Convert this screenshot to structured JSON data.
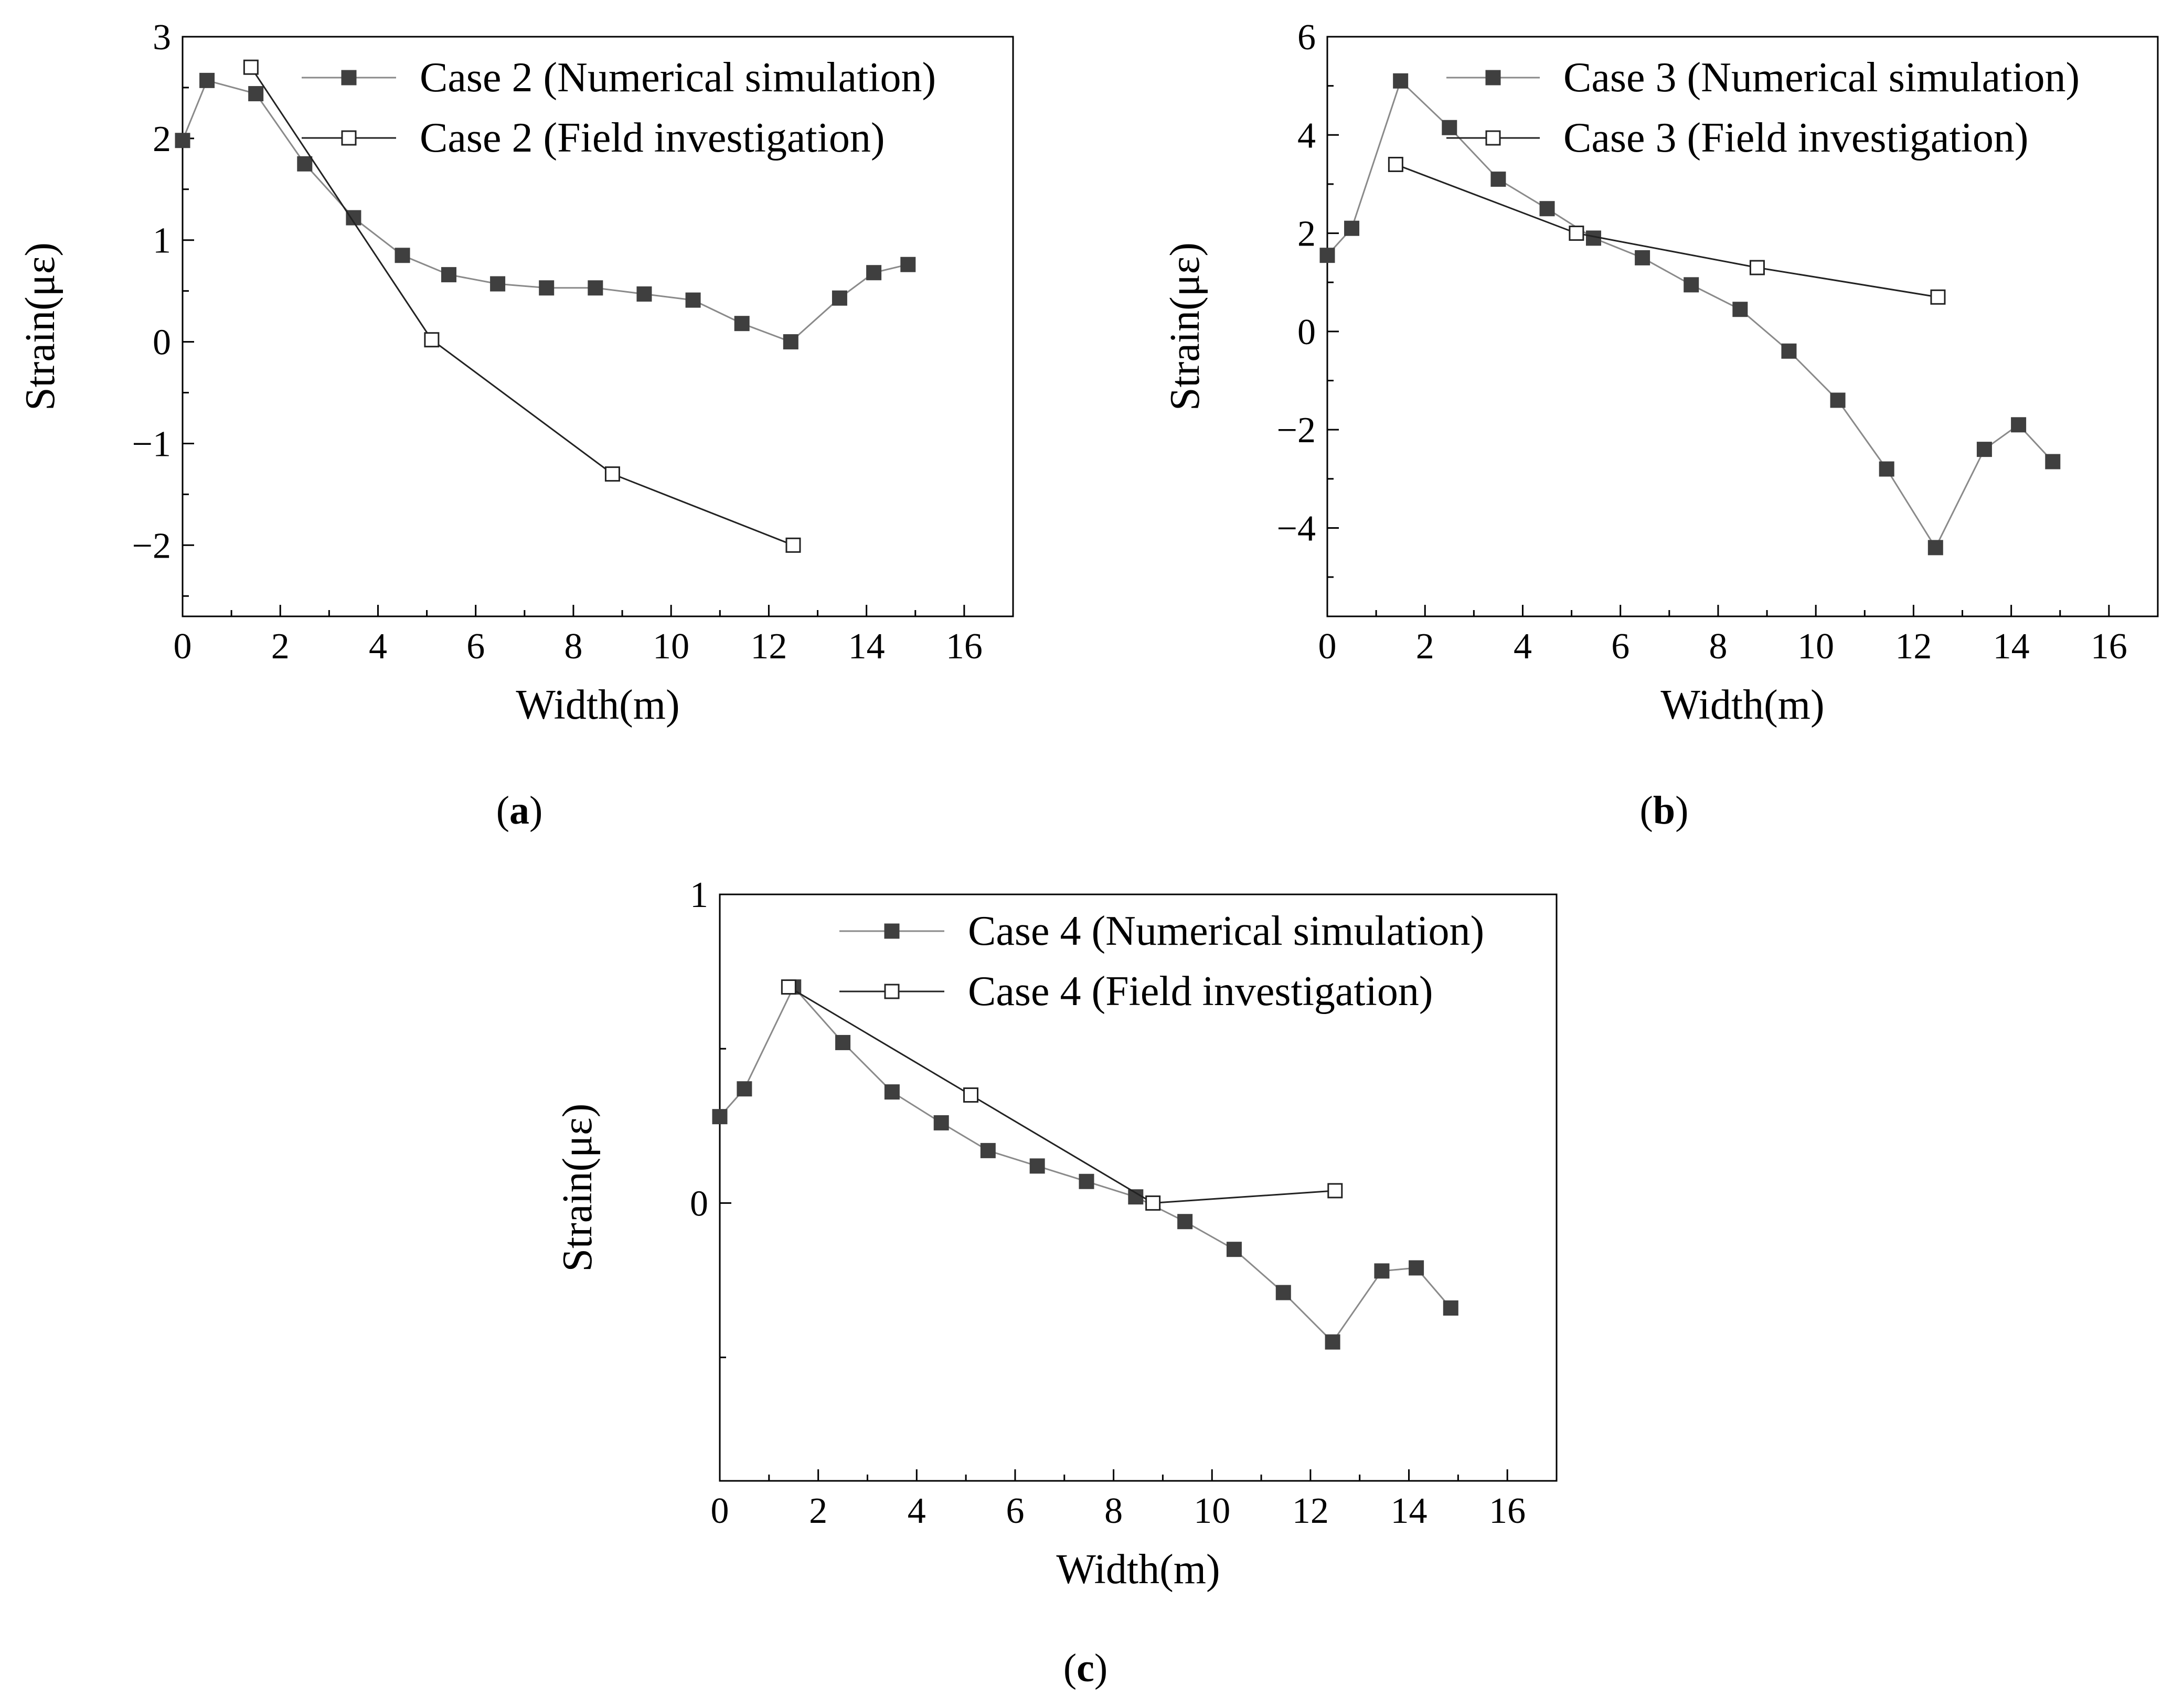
{
  "chart_data": [
    {
      "type": "line",
      "panel": "a",
      "caption_letter": "a",
      "xlabel": "Width(m)",
      "ylabel": "Strain(με)",
      "xlim": [
        0,
        17
      ],
      "ylim": [
        -2.7,
        3
      ],
      "xticks": [
        0,
        2,
        4,
        6,
        8,
        10,
        12,
        14,
        16
      ],
      "yticks": [
        -2,
        -1,
        0,
        1,
        2,
        3
      ],
      "legend_position": "top-right",
      "series": [
        {
          "name": "Case 2 (Numerical simulation)",
          "marker": "filled-square",
          "x": [
            0,
            0.5,
            1.5,
            2.5,
            3.5,
            4.5,
            5.45,
            6.45,
            7.45,
            8.45,
            9.45,
            10.45,
            11.45,
            12.45,
            13.45,
            14.15,
            14.85
          ],
          "y": [
            1.98,
            2.57,
            2.44,
            1.75,
            1.22,
            0.85,
            0.66,
            0.57,
            0.53,
            0.53,
            0.47,
            0.41,
            0.18,
            0.0,
            0.43,
            0.68,
            0.76
          ]
        },
        {
          "name": "Case 2 (Field investigation)",
          "marker": "open-square",
          "x": [
            1.4,
            5.1,
            8.8,
            12.5
          ],
          "y": [
            2.7,
            0.02,
            -1.3,
            -2.0
          ]
        }
      ]
    },
    {
      "type": "line",
      "panel": "b",
      "caption_letter": "b",
      "xlabel": "Width(m)",
      "ylabel": "Strain(με)",
      "xlim": [
        0,
        17
      ],
      "ylim": [
        -5.8,
        6
      ],
      "xticks": [
        0,
        2,
        4,
        6,
        8,
        10,
        12,
        14,
        16
      ],
      "yticks": [
        -4,
        -2,
        0,
        2,
        4,
        6
      ],
      "legend_position": "top-right",
      "series": [
        {
          "name": "Case 3 (Numerical simulation)",
          "marker": "filled-square",
          "x": [
            0,
            0.5,
            1.5,
            2.5,
            3.5,
            4.5,
            5.45,
            6.45,
            7.45,
            8.45,
            9.45,
            10.45,
            11.45,
            12.45,
            13.45,
            14.15,
            14.85
          ],
          "y": [
            1.55,
            2.1,
            5.1,
            4.15,
            3.1,
            2.5,
            1.9,
            1.5,
            0.95,
            0.45,
            -0.4,
            -1.4,
            -2.8,
            -4.4,
            -2.4,
            -1.9,
            -2.65
          ]
        },
        {
          "name": "Case 3 (Field investigation)",
          "marker": "open-square",
          "x": [
            1.4,
            5.1,
            8.8,
            12.5
          ],
          "y": [
            3.4,
            2.0,
            1.3,
            0.7
          ]
        }
      ]
    },
    {
      "type": "line",
      "panel": "c",
      "caption_letter": "c",
      "xlabel": "Width(m)",
      "ylabel": "Strain(με)",
      "xlim": [
        0,
        17
      ],
      "ylim": [
        -0.9,
        1
      ],
      "xticks": [
        0,
        2,
        4,
        6,
        8,
        10,
        12,
        14,
        16
      ],
      "yticks": [
        0,
        1
      ],
      "legend_position": "top-right",
      "series": [
        {
          "name": "Case 4 (Numerical simulation)",
          "marker": "filled-square",
          "x": [
            0,
            0.5,
            1.5,
            2.5,
            3.5,
            4.5,
            5.45,
            6.45,
            7.45,
            8.45,
            9.45,
            10.45,
            11.45,
            12.45,
            13.45,
            14.15,
            14.85
          ],
          "y": [
            0.28,
            0.37,
            0.7,
            0.52,
            0.36,
            0.26,
            0.17,
            0.12,
            0.07,
            0.02,
            -0.06,
            -0.15,
            -0.29,
            -0.45,
            -0.22,
            -0.21,
            -0.34
          ]
        },
        {
          "name": "Case 4 (Field investigation)",
          "marker": "open-square",
          "x": [
            1.4,
            5.1,
            8.8,
            12.5
          ],
          "y": [
            0.7,
            0.35,
            0.0,
            0.04
          ]
        }
      ]
    }
  ]
}
